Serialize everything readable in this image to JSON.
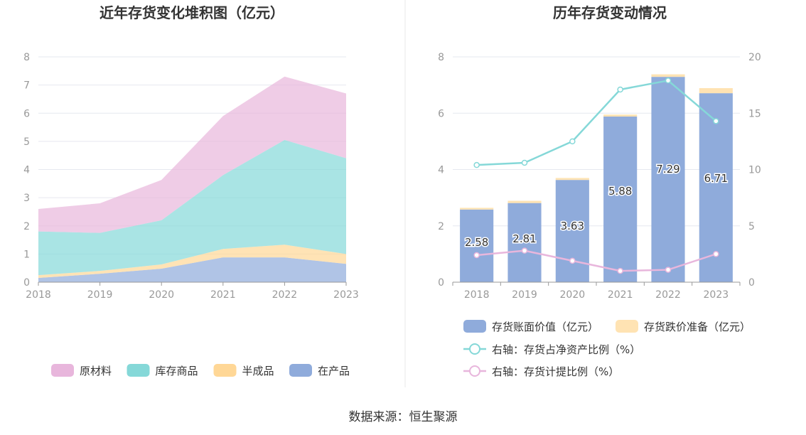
{
  "left_chart": {
    "title": "近年存货变化堆积图（亿元）"
  },
  "right_chart": {
    "title": "历年存货变动情况"
  },
  "source": "数据来源：恒生聚源",
  "chart_data": [
    {
      "type": "area",
      "title": "近年存货变化堆积图（亿元）",
      "categories": [
        "2018",
        "2019",
        "2020",
        "2021",
        "2022",
        "2023"
      ],
      "ylim": [
        0,
        8
      ],
      "yticks": [
        0,
        1,
        2,
        3,
        4,
        5,
        6,
        7,
        8
      ],
      "stacked": true,
      "legend_position": "bottom",
      "series": [
        {
          "name": "在产品",
          "color": "#8fabdb",
          "values": [
            0.15,
            0.3,
            0.48,
            0.88,
            0.88,
            0.65
          ]
        },
        {
          "name": "半成品",
          "color": "#ffd796",
          "values": [
            0.1,
            0.1,
            0.15,
            0.3,
            0.45,
            0.35
          ]
        },
        {
          "name": "库存商品",
          "color": "#85d8d8",
          "values": [
            1.55,
            1.35,
            1.57,
            2.62,
            3.72,
            3.4
          ]
        },
        {
          "name": "原材料",
          "color": "#e8b6dc",
          "values": [
            0.8,
            1.05,
            1.43,
            2.1,
            2.25,
            2.3
          ]
        }
      ],
      "legend_order": [
        "原材料",
        "库存商品",
        "半成品",
        "在产品"
      ]
    },
    {
      "type": "bar",
      "title": "历年存货变动情况",
      "categories": [
        "2018",
        "2019",
        "2020",
        "2021",
        "2022",
        "2023"
      ],
      "ylim": [
        0,
        8
      ],
      "yticks": [
        0,
        2,
        4,
        6,
        8
      ],
      "y2lim": [
        0,
        20
      ],
      "y2ticks": [
        0,
        5,
        10,
        15,
        20
      ],
      "legend_position": "bottom",
      "series": [
        {
          "name": "存货账面价值（亿元）",
          "kind": "bar",
          "axis": "left",
          "color": "#8fabdb",
          "values": [
            2.58,
            2.81,
            3.63,
            5.88,
            7.29,
            6.71
          ],
          "labels": [
            "2.58",
            "2.81",
            "3.63",
            "5.88",
            "7.29",
            "6.71"
          ]
        },
        {
          "name": "存货跌价准备（亿元）",
          "kind": "bar-stack",
          "axis": "left",
          "color": "#ffe3b3",
          "values": [
            0.06,
            0.08,
            0.07,
            0.07,
            0.09,
            0.18
          ]
        },
        {
          "name": "右轴：存货占净资产比例（%）",
          "kind": "line",
          "axis": "right",
          "color": "#85d8d8",
          "values": [
            10.4,
            10.6,
            12.5,
            17.1,
            17.9,
            14.3
          ]
        },
        {
          "name": "右轴：存货计提比例（%）",
          "kind": "line",
          "axis": "right",
          "color": "#e8b6dc",
          "values": [
            2.4,
            2.8,
            1.9,
            1.0,
            1.1,
            2.5
          ]
        }
      ]
    }
  ]
}
